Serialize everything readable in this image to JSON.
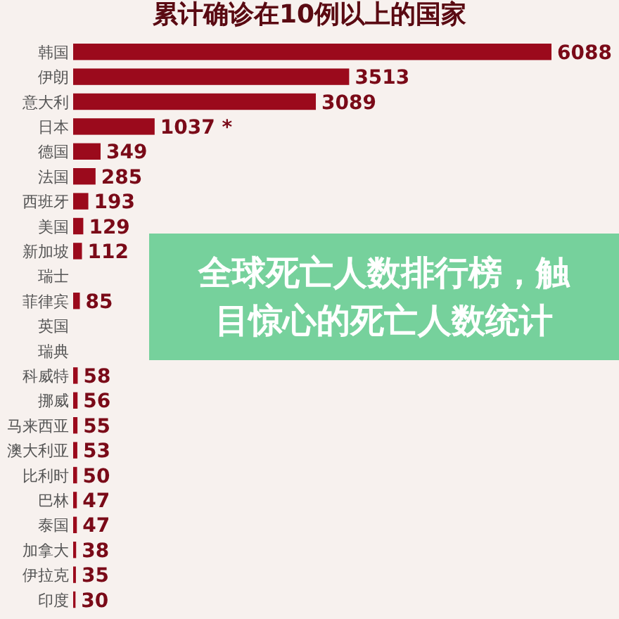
{
  "chart_data": {
    "type": "bar",
    "orientation": "horizontal",
    "title": "累计确诊在10例以上的国家",
    "categories": [
      "韩国",
      "伊朗",
      "意大利",
      "日本",
      "德国",
      "法国",
      "西班牙",
      "美国",
      "新加坡",
      "瑞士",
      "菲律宾",
      "英国",
      "瑞典",
      "科威特",
      "挪威",
      "马来西亚",
      "澳大利亚",
      "比利时",
      "巴林",
      "泰国",
      "加拿大",
      "伊拉克",
      "印度"
    ],
    "values": [
      6088,
      3513,
      3089,
      1037,
      349,
      285,
      193,
      129,
      112,
      null,
      85,
      null,
      null,
      58,
      56,
      55,
      53,
      50,
      47,
      47,
      38,
      35,
      30
    ],
    "value_labels": [
      "6088",
      "3513",
      "3089",
      "1037 *",
      "349",
      "285",
      "193",
      "129",
      "112",
      null,
      "85",
      null,
      null,
      "58",
      "56",
      "55",
      "53",
      "50",
      "47",
      "47",
      "38",
      "35",
      "30"
    ],
    "color": "#9b0a1c",
    "annotations": [
      "全球死亡人数排行榜，触目惊心的死亡人数统计"
    ]
  }
}
